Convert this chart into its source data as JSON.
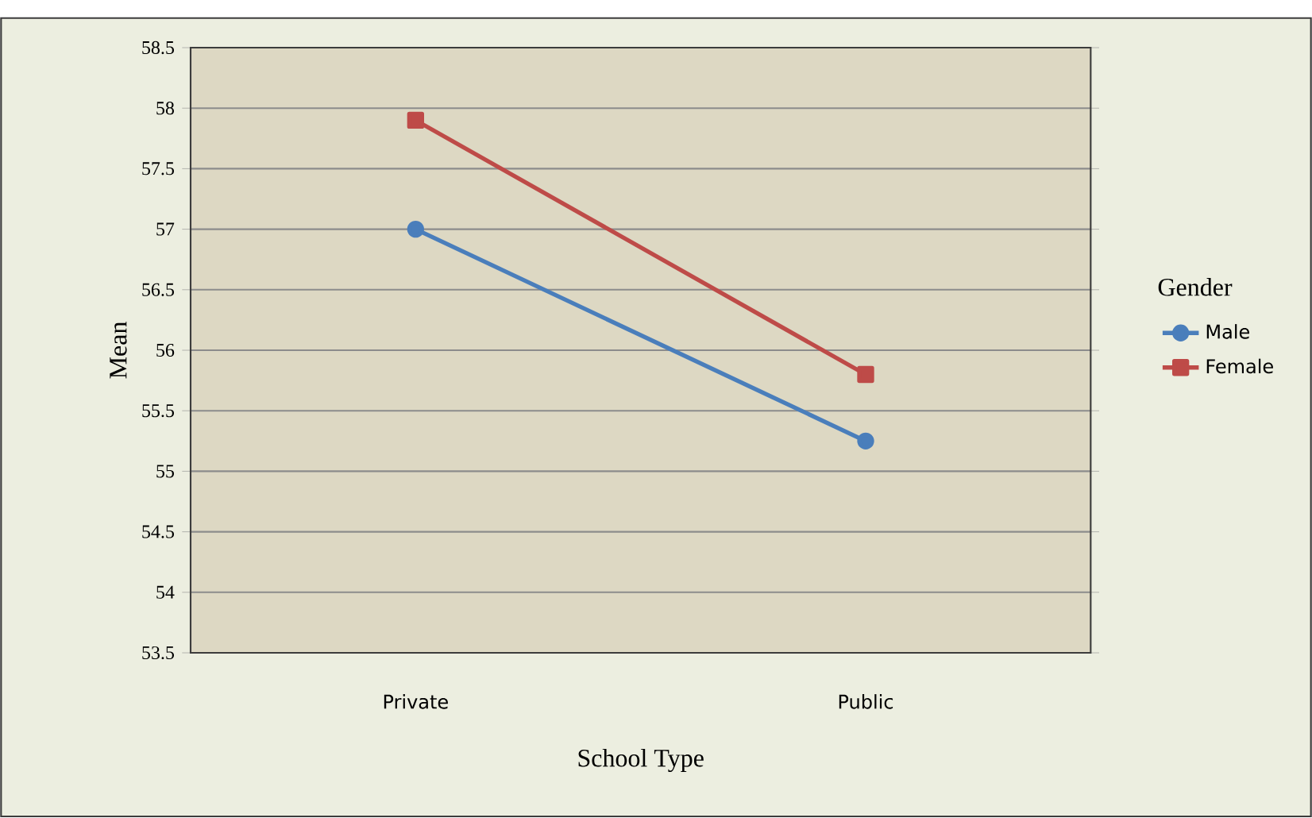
{
  "chart_data": {
    "type": "line",
    "xlabel": "School Type",
    "ylabel": "Mean",
    "legend_title": "Gender",
    "categories": [
      "Private",
      "Public"
    ],
    "series": [
      {
        "name": "Male",
        "color": "#4a7ebb",
        "marker": "circle",
        "values": [
          57.0,
          55.25
        ]
      },
      {
        "name": "Female",
        "color": "#be4b48",
        "marker": "square",
        "values": [
          57.9,
          55.8
        ]
      }
    ],
    "ylim": [
      53.5,
      58.5
    ],
    "yticks": [
      53.5,
      54,
      54.5,
      55,
      55.5,
      56,
      56.5,
      57,
      57.5,
      58,
      58.5
    ],
    "grid": "y",
    "legend": "right",
    "line_style": "solid"
  }
}
